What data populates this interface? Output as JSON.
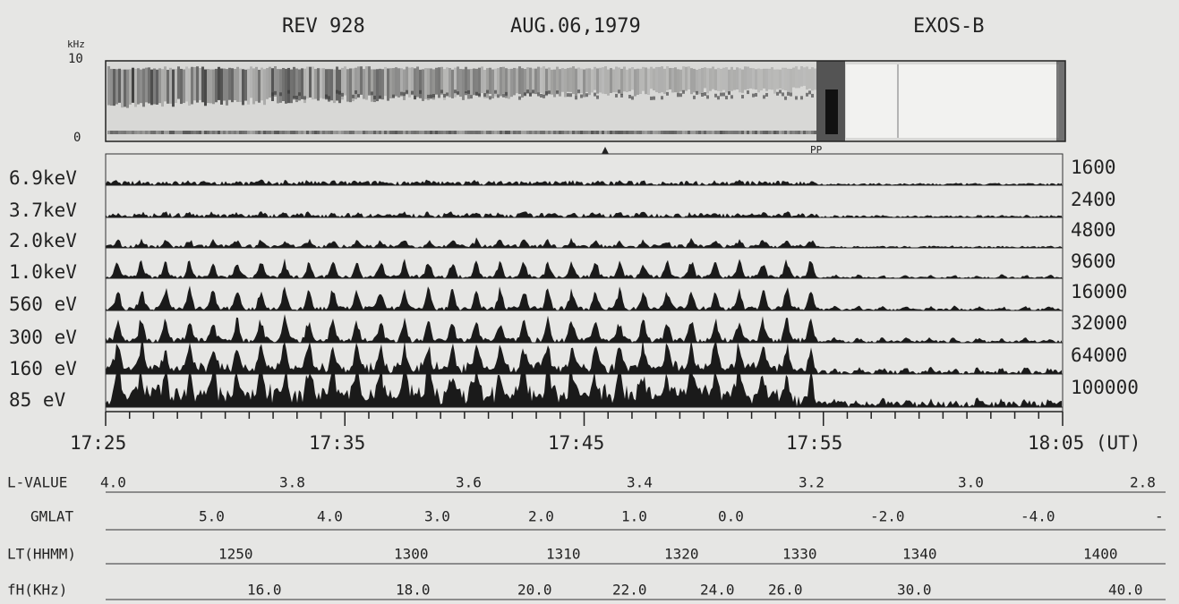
{
  "header": {
    "rev": "REV 928",
    "date": "AUG.06,1979",
    "satellite": "EXOS-B"
  },
  "spectrogram": {
    "unit": "kHz",
    "top_label": "10",
    "bottom_label": "0",
    "marker": "PP"
  },
  "channels": [
    {
      "energy": "6.9keV",
      "scale": "1600"
    },
    {
      "energy": "3.7keV",
      "scale": "2400"
    },
    {
      "energy": "2.0keV",
      "scale": "4800"
    },
    {
      "energy": "1.0keV",
      "scale": "9600"
    },
    {
      "energy": "560 eV",
      "scale": "16000"
    },
    {
      "energy": "300 eV",
      "scale": "32000"
    },
    {
      "energy": "160 eV",
      "scale": "64000"
    },
    {
      "energy": "85 eV",
      "scale": "100000"
    }
  ],
  "time_axis": {
    "labels": [
      "17:25",
      "17:35",
      "17:45",
      "17:55",
      "18:05 (UT)"
    ]
  },
  "ephemeris": [
    {
      "label": "L-VALUE",
      "values": [
        "4.0",
        "3.8",
        "3.6",
        "3.4",
        "3.2",
        "3.0",
        "2.8"
      ]
    },
    {
      "label": "GMLAT",
      "values": [
        "5.0",
        "4.0",
        "3.0",
        "2.0",
        "1.0",
        "0.0",
        "-2.0",
        "-4.0",
        "-"
      ]
    },
    {
      "label": "LT(HHMM)",
      "values": [
        "1250",
        "1300",
        "1310",
        "1320",
        "1330",
        "1340",
        "1400"
      ]
    },
    {
      "label": "fH(KHz)",
      "values": [
        "16.0",
        "18.0",
        "20.0",
        "22.0",
        "24.0",
        "26.0",
        "30.0",
        "40.0"
      ]
    }
  ]
}
